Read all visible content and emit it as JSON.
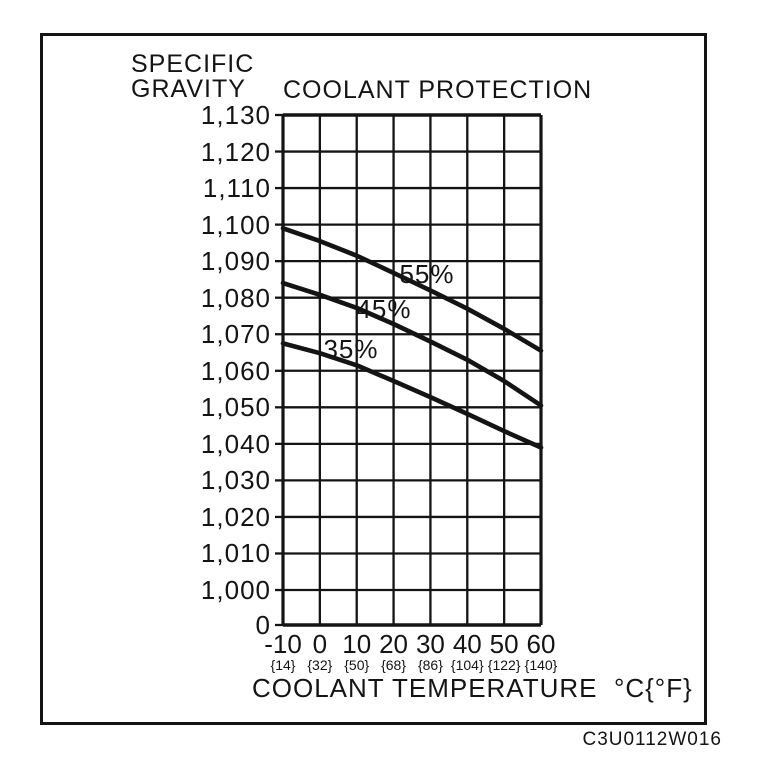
{
  "figure": {
    "y_axis_title_line1": "SPECIFIC",
    "y_axis_title_line2": "GRAVITY",
    "caption": "C3U0112W016"
  },
  "chart_data": {
    "type": "line",
    "title": "COOLANT PROTECTION",
    "xlabel": "COOLANT TEMPERATURE  °C{°F}",
    "ylabel": "SPECIFIC GRAVITY",
    "x": [
      -10,
      0,
      10,
      20,
      30,
      40,
      50,
      60
    ],
    "x_tick_labels_c": [
      "-10",
      "0",
      "10",
      "20",
      "30",
      "40",
      "50",
      "60"
    ],
    "x_tick_labels_f": [
      "{14}",
      "{32}",
      "{50}",
      "{68}",
      "{86}",
      "{104}",
      "{122}",
      "{140}"
    ],
    "y_tick_labels": [
      "1,130",
      "1,120",
      "1,110",
      "1,100",
      "1,090",
      "1,080",
      "1,070",
      "1,060",
      "1,050",
      "1,040",
      "1,030",
      "1,020",
      "1,010",
      "1,000",
      "0"
    ],
    "ylim": [
      1.0,
      1.13
    ],
    "y_axis_break_to_zero": true,
    "grid": true,
    "legend_position": "labels-on-curves",
    "line_color": "#141414",
    "series": [
      {
        "name": "55%",
        "values": [
          1.099,
          1.0955,
          1.0915,
          1.0868,
          1.082,
          1.077,
          1.0715,
          1.0655
        ]
      },
      {
        "name": "45%",
        "values": [
          1.084,
          1.0808,
          1.0772,
          1.0728,
          1.068,
          1.063,
          1.0572,
          1.0505
        ]
      },
      {
        "name": "35%",
        "values": [
          1.0675,
          1.0648,
          1.0615,
          1.0572,
          1.0528,
          1.0482,
          1.0435,
          1.039
        ]
      }
    ]
  }
}
